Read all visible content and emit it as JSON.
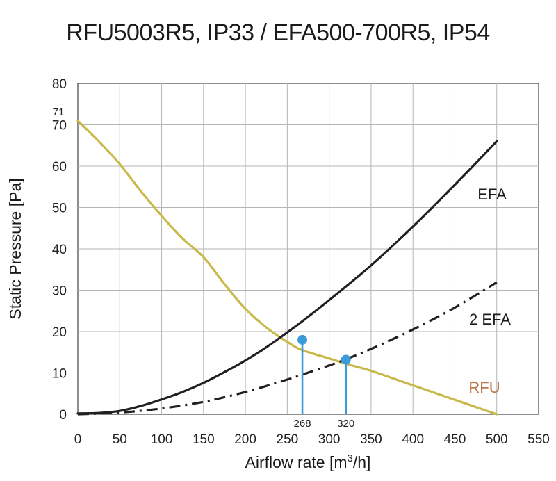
{
  "chart_data": {
    "type": "line",
    "title": "RFU5003R5, IP33 / EFA500-700R5, IP54",
    "xlabel_prefix": "Airflow rate [m",
    "xlabel_sup": "3",
    "xlabel_suffix": "/h]",
    "ylabel": "Static Pressure [Pa]",
    "xlim": [
      0,
      550
    ],
    "ylim": [
      0,
      80
    ],
    "grid": true,
    "x_ticks": [
      0,
      50,
      100,
      150,
      200,
      250,
      300,
      350,
      400,
      450,
      500,
      550
    ],
    "y_ticks": [
      0,
      10,
      20,
      30,
      40,
      50,
      60,
      70,
      80
    ],
    "series": [
      {
        "name": "RFU",
        "color": "#c9b94a",
        "label_color": "#b8744a",
        "style": "solid",
        "x": [
          0,
          25,
          50,
          75,
          100,
          125,
          150,
          175,
          200,
          225,
          250,
          268,
          300,
          320,
          350,
          400,
          450,
          500
        ],
        "y": [
          71,
          66,
          60.5,
          54,
          48,
          42.5,
          38,
          31.5,
          25.5,
          21,
          17.5,
          15.5,
          13.5,
          12.2,
          10.5,
          7,
          3.5,
          0
        ]
      },
      {
        "name": "EFA",
        "color": "#231f20",
        "label_color": "#1a1a1a",
        "style": "solid",
        "x": [
          0,
          25,
          50,
          75,
          100,
          125,
          150,
          175,
          200,
          225,
          250,
          268,
          300,
          350,
          400,
          450,
          500
        ],
        "y": [
          0.2,
          0.3,
          0.8,
          2,
          3.6,
          5.4,
          7.6,
          10.2,
          13,
          16.2,
          19.8,
          22.5,
          27.6,
          36,
          45.4,
          55.5,
          66
        ]
      },
      {
        "name": "2 EFA",
        "color": "#231f20",
        "label_color": "#1a1a1a",
        "style": "dashdot",
        "x": [
          0,
          50,
          100,
          150,
          200,
          250,
          300,
          320,
          350,
          400,
          450,
          500
        ],
        "y": [
          0,
          0.4,
          1.4,
          3,
          5.4,
          8.4,
          11.8,
          13.3,
          15.8,
          20.5,
          25.8,
          31.9
        ]
      }
    ],
    "operating_points": [
      {
        "x": 268,
        "y": 18,
        "label": "268"
      },
      {
        "x": 320,
        "y": 13.2,
        "label": "320"
      }
    ],
    "annotations": [
      {
        "text": "71",
        "y": 71
      }
    ],
    "marker_color": "#3b9bd8"
  }
}
